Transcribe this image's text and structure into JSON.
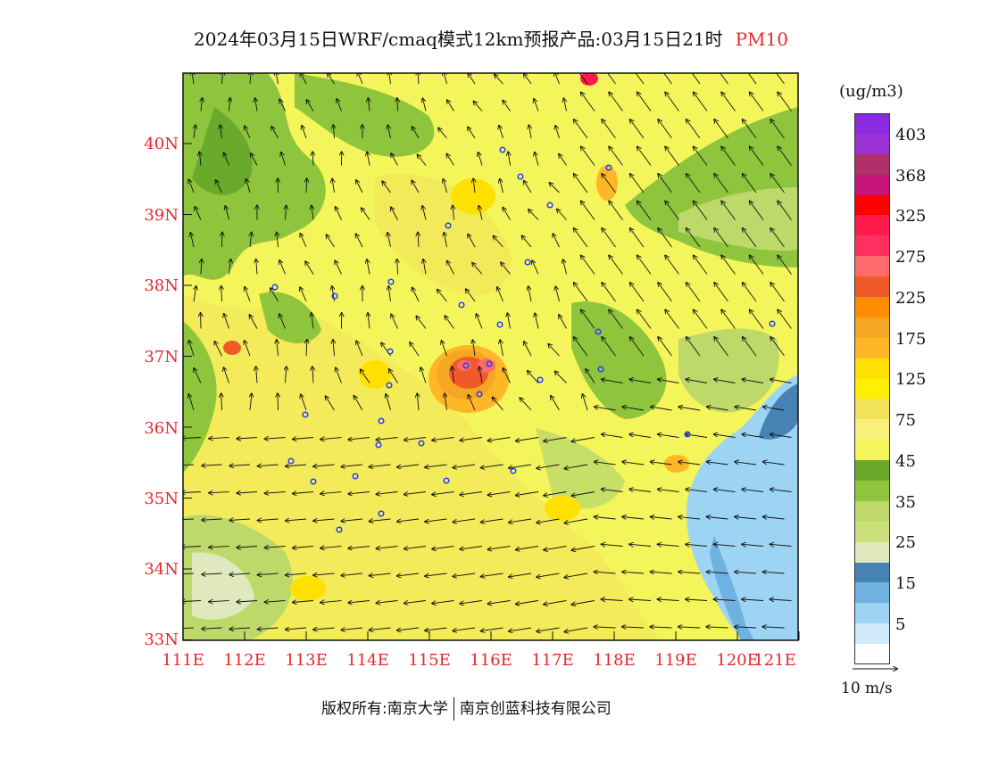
{
  "title": {
    "main": "2024年03月15日WRF/cmaq模式12km预报产品:03月15日21时",
    "pollutant": "PM10"
  },
  "map": {
    "lat_labels": [
      "40N",
      "39N",
      "38N",
      "37N",
      "36N",
      "35N",
      "34N",
      "33N"
    ],
    "lon_labels": [
      "111E",
      "112E",
      "113E",
      "114E",
      "115E",
      "116E",
      "117E",
      "118E",
      "119E",
      "120E",
      "121E"
    ]
  },
  "colorbar": {
    "units": "(ug/m3)",
    "colors": [
      "#8a2be2",
      "#9b30d6",
      "#b0306a",
      "#c8157a",
      "#ff0000",
      "#ff1a4a",
      "#ff3060",
      "#ff6a6a",
      "#f05a28",
      "#ff8c00",
      "#f5a623",
      "#ffb627",
      "#ffe000",
      "#ffef00",
      "#f2e25a",
      "#f8f07a",
      "#f4f55a",
      "#6aaa2a",
      "#8fc53c",
      "#bcd96a",
      "#cce07a",
      "#dfe9bd",
      "#4682b4",
      "#6fb1e0",
      "#9ed4f3",
      "#cfe9fb",
      "#ffffff"
    ],
    "labels": [
      "403",
      "368",
      "325",
      "275",
      "225",
      "175",
      "125",
      "75",
      "45",
      "35",
      "25",
      "15",
      "5"
    ]
  },
  "wind_reference": {
    "label": "10 m/s"
  },
  "footer": {
    "copyright": "版权所有:南京大学",
    "company": "南京创蓝科技有限公司"
  }
}
